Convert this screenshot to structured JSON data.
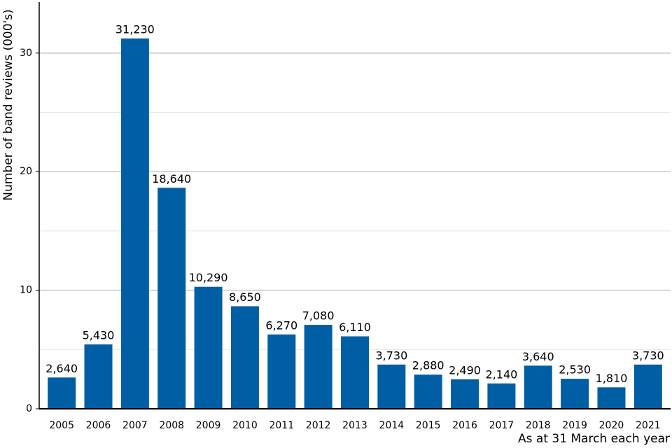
{
  "chart_data": {
    "type": "bar",
    "y_label": "Number of band reviews (000's)",
    "x_label": "As at 31 March each year",
    "categories": [
      "2005",
      "2006",
      "2007",
      "2008",
      "2009",
      "2010",
      "2011",
      "2012",
      "2013",
      "2014",
      "2015",
      "2016",
      "2017",
      "2018",
      "2019",
      "2020",
      "2021"
    ],
    "values": [
      2.64,
      5.43,
      31.23,
      18.64,
      10.29,
      8.65,
      6.27,
      7.08,
      6.11,
      3.73,
      2.88,
      2.49,
      2.14,
      3.64,
      2.53,
      1.81,
      3.73
    ],
    "value_labels": [
      "2,640",
      "5,430",
      "31,230",
      "18,640",
      "10,290",
      "8,650",
      "6,270",
      "7,080",
      "6,110",
      "3,730",
      "2,880",
      "2,490",
      "2,140",
      "3,640",
      "2,530",
      "1,810",
      "3,730"
    ],
    "color": "#005ea5",
    "ylim": [
      0,
      34.3
    ],
    "yticks": [
      0,
      10,
      20,
      30
    ],
    "minor_yticks": [
      5,
      15,
      25
    ],
    "grid": true
  }
}
